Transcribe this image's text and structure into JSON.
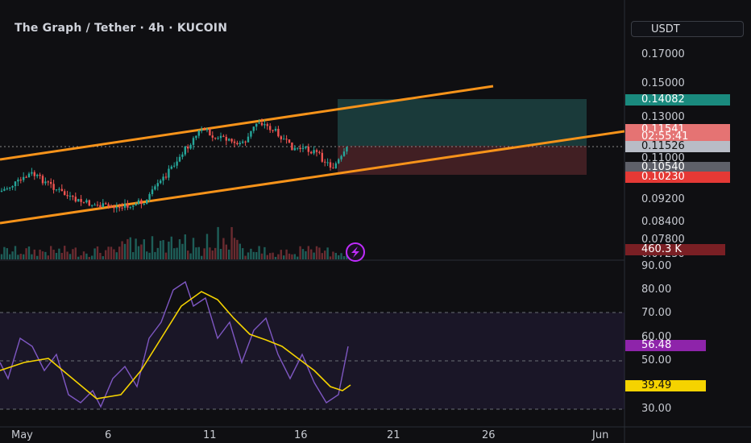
{
  "header": {
    "title": "The Graph / Tether · 4h · KUCOIN",
    "currency": "USDT"
  },
  "price_axis": {
    "ticks": [
      "0.17000",
      "0.15000",
      "0.13000",
      "0.11000",
      "0.09200",
      "0.08400",
      "0.07800",
      "0.07250"
    ]
  },
  "badges": {
    "target": "0.14082",
    "current_price": "0.11541",
    "countdown": "02:55:41",
    "price2": "0.11526",
    "entry": "0.10540",
    "stop": "0.10230",
    "volume": "460.3 K",
    "rsi": "56.48",
    "rsi_ma": "39.49"
  },
  "rsi_axis": {
    "ticks": [
      "90.00",
      "80.00",
      "70.00",
      "60.00",
      "50.00",
      "30.00"
    ]
  },
  "time_axis": {
    "ticks": [
      "May",
      "6",
      "11",
      "16",
      "21",
      "26",
      "Jun"
    ]
  },
  "colors": {
    "channel": "#f7931a",
    "up": "#26a69a",
    "down": "#ef5350",
    "rsi": "#7e57c2",
    "rsi_ma": "#f5d300",
    "target_badge": "#1a8a7e",
    "stop_badge": "#e53935"
  },
  "icons": {
    "lightning": "lightning-icon"
  }
}
